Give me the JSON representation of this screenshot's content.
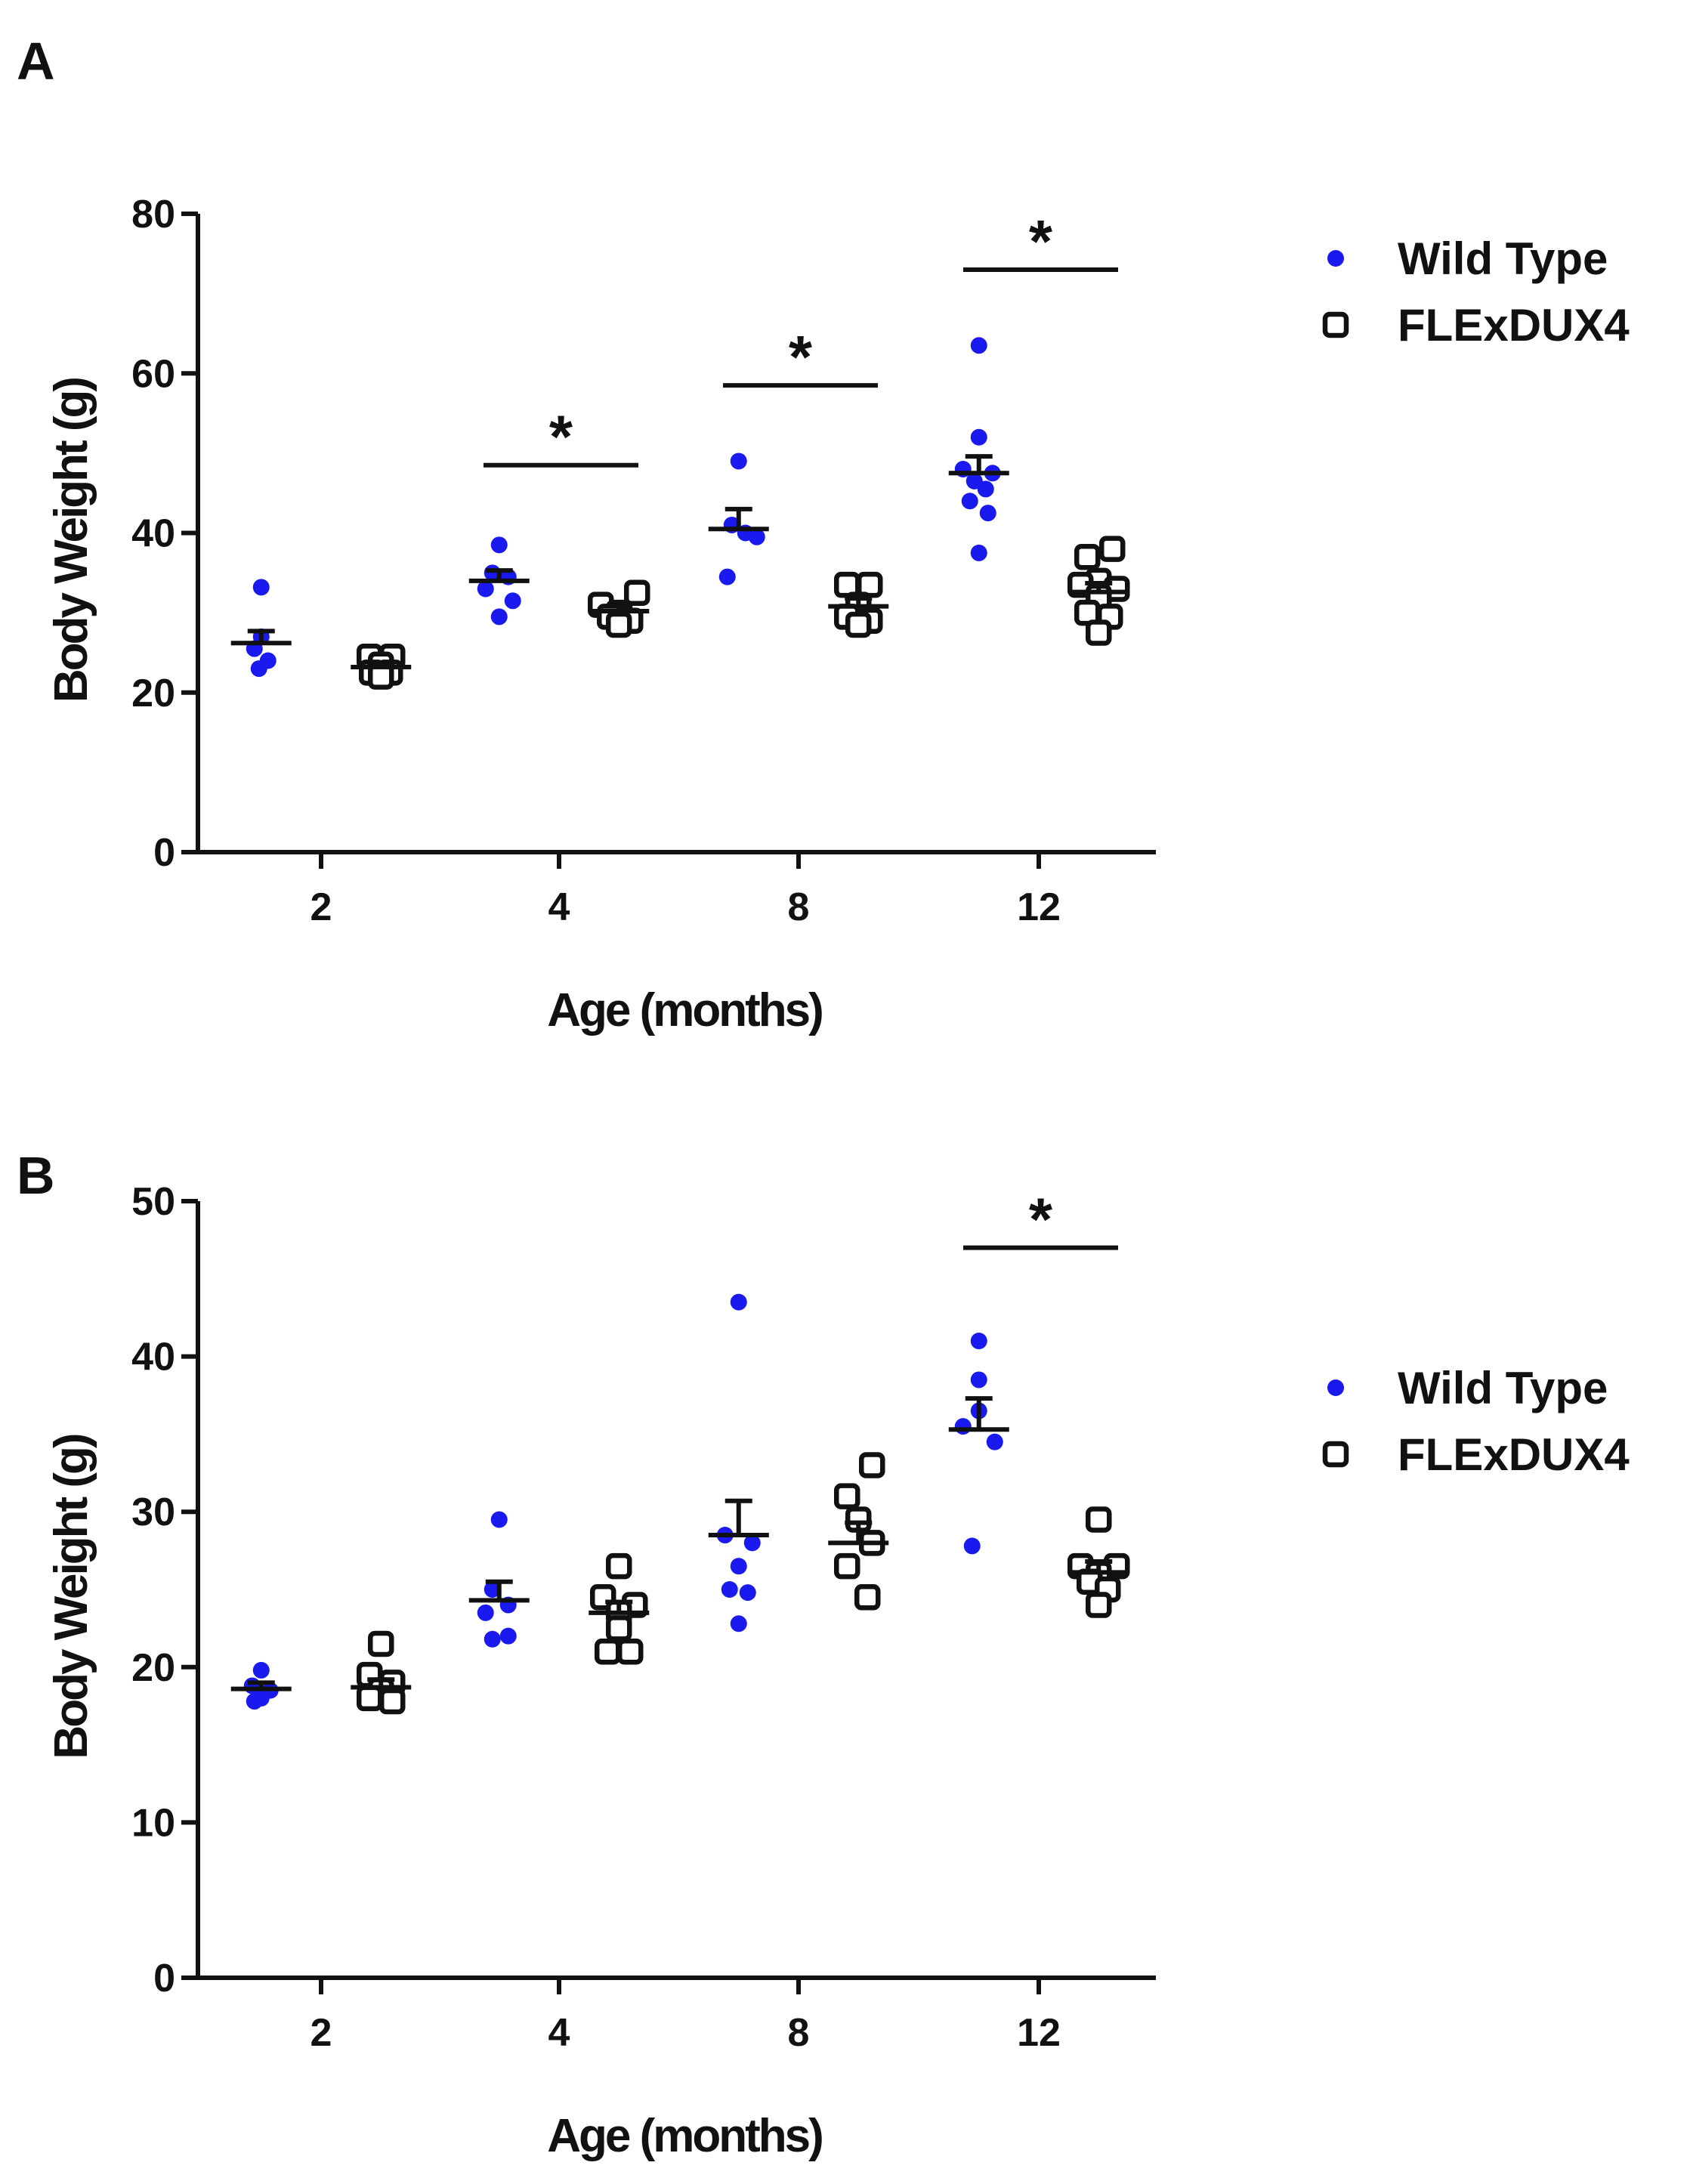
{
  "chart_data": [
    {
      "type": "scatter",
      "panel_label": "A",
      "xlabel": "Age (months)",
      "ylabel": "Body Weight (g)",
      "ylim": [
        0,
        80
      ],
      "yticks": [
        "0",
        "20",
        "40",
        "60",
        "80"
      ],
      "categories": [
        "2",
        "4",
        "8",
        "12"
      ],
      "legend": {
        "placement": "top-right",
        "entries": [
          "Wild Type",
          "FLExDUX4"
        ]
      },
      "series": [
        {
          "name": "Wild Type",
          "marker": "filled-circle",
          "color": "#1a1aee",
          "points": [
            [
              [
                33.2,
                0
              ],
              [
                27.0,
                0
              ],
              [
                25.5,
                -0.3
              ],
              [
                24.0,
                0.3
              ],
              [
                23.0,
                -0.1
              ]
            ],
            [
              [
                38.5,
                0
              ],
              [
                35.0,
                -0.3
              ],
              [
                34.5,
                0.4
              ],
              [
                33.0,
                -0.6
              ],
              [
                31.5,
                0.6
              ],
              [
                29.5,
                0
              ]
            ],
            [
              [
                49.0,
                0
              ],
              [
                41.0,
                -0.3
              ],
              [
                40.0,
                0.3
              ],
              [
                39.5,
                0.8
              ],
              [
                34.5,
                -0.5
              ]
            ],
            [
              [
                63.5,
                0
              ],
              [
                52.0,
                0
              ],
              [
                48.0,
                -0.7
              ],
              [
                47.5,
                0.6
              ],
              [
                46.5,
                -0.2
              ],
              [
                45.5,
                0.3
              ],
              [
                44.0,
                -0.4
              ],
              [
                42.5,
                0.4
              ],
              [
                37.5,
                0
              ]
            ]
          ],
          "mean": [
            26.2,
            34.0,
            40.5,
            47.5
          ],
          "sem": [
            1.5,
            1.3,
            2.5,
            2.1
          ]
        },
        {
          "name": "FLExDUX4",
          "marker": "open-square",
          "color": "#111111",
          "points": [
            [
              [
                24.5,
                -0.5
              ],
              [
                24.5,
                0.5
              ],
              [
                23.5,
                0
              ],
              [
                22.5,
                -0.4
              ],
              [
                22.5,
                0.4
              ],
              [
                22.0,
                0
              ]
            ],
            [
              [
                32.5,
                0.8
              ],
              [
                31.0,
                -0.8
              ],
              [
                30.0,
                0
              ],
              [
                29.5,
                -0.4
              ],
              [
                29.0,
                0.5
              ],
              [
                28.5,
                0
              ]
            ],
            [
              [
                33.5,
                -0.5
              ],
              [
                33.5,
                0.5
              ],
              [
                31.0,
                0
              ],
              [
                29.5,
                -0.5
              ],
              [
                29.0,
                0.5
              ],
              [
                28.5,
                0
              ]
            ],
            [
              [
                38.0,
                0.6
              ],
              [
                37.0,
                -0.5
              ],
              [
                34.0,
                0
              ],
              [
                33.5,
                -0.8
              ],
              [
                33.0,
                0.8
              ],
              [
                32.0,
                0
              ],
              [
                30.0,
                -0.5
              ],
              [
                29.5,
                0.5
              ],
              [
                27.5,
                0
              ]
            ]
          ],
          "mean": [
            23.2,
            30.2,
            30.8,
            32.6
          ],
          "sem": [
            0.5,
            0.6,
            1.0,
            1.1
          ]
        }
      ],
      "significance": [
        {
          "category": "4",
          "label": "*",
          "y": 48.5
        },
        {
          "category": "8",
          "label": "*",
          "y": 58.5
        },
        {
          "category": "12",
          "label": "*",
          "y": 73.0
        }
      ]
    },
    {
      "type": "scatter",
      "panel_label": "B",
      "xlabel": "Age (months)",
      "ylabel": "Body Weight (g)",
      "ylim": [
        0,
        50
      ],
      "yticks": [
        "0",
        "10",
        "20",
        "30",
        "40",
        "50"
      ],
      "categories": [
        "2",
        "4",
        "8",
        "12"
      ],
      "legend": {
        "placement": "top-right",
        "entries": [
          "Wild Type",
          "FLExDUX4"
        ]
      },
      "series": [
        {
          "name": "Wild Type",
          "marker": "filled-circle",
          "color": "#1a1aee",
          "points": [
            [
              [
                19.8,
                0
              ],
              [
                18.8,
                -0.4
              ],
              [
                18.5,
                0.4
              ],
              [
                18.0,
                0
              ],
              [
                17.8,
                -0.3
              ]
            ],
            [
              [
                29.5,
                0
              ],
              [
                25.0,
                -0.3
              ],
              [
                24.0,
                0.4
              ],
              [
                23.5,
                -0.6
              ],
              [
                22.0,
                0.4
              ],
              [
                21.8,
                -0.3
              ]
            ],
            [
              [
                43.5,
                0
              ],
              [
                28.5,
                -0.6
              ],
              [
                28.0,
                0.6
              ],
              [
                26.5,
                0
              ],
              [
                25.0,
                -0.4
              ],
              [
                24.8,
                0.4
              ],
              [
                22.8,
                0
              ]
            ],
            [
              [
                41.0,
                0
              ],
              [
                38.5,
                0
              ],
              [
                36.5,
                0
              ],
              [
                35.5,
                -0.7
              ],
              [
                34.5,
                0.7
              ],
              [
                27.8,
                -0.3
              ]
            ]
          ],
          "mean": [
            18.6,
            24.3,
            28.5,
            35.3
          ],
          "sem": [
            0.4,
            1.2,
            2.2,
            2.0
          ]
        },
        {
          "name": "FLExDUX4",
          "marker": "open-square",
          "color": "#111111",
          "points": [
            [
              [
                21.5,
                0
              ],
              [
                19.5,
                -0.5
              ],
              [
                19.0,
                0.5
              ],
              [
                18.5,
                0
              ],
              [
                18.0,
                -0.5
              ],
              [
                17.8,
                0.5
              ]
            ],
            [
              [
                26.5,
                0
              ],
              [
                24.5,
                -0.7
              ],
              [
                24.0,
                0.7
              ],
              [
                23.5,
                0
              ],
              [
                22.5,
                0
              ],
              [
                21.0,
                -0.5
              ],
              [
                21.0,
                0.5
              ]
            ],
            [
              [
                33.0,
                0.6
              ],
              [
                31.0,
                -0.5
              ],
              [
                29.5,
                0
              ],
              [
                28.0,
                0.6
              ],
              [
                26.5,
                -0.5
              ],
              [
                24.5,
                0.4
              ]
            ],
            [
              [
                29.5,
                0
              ],
              [
                26.5,
                -0.8
              ],
              [
                26.5,
                0.8
              ],
              [
                26.0,
                0
              ],
              [
                25.5,
                -0.4
              ],
              [
                25.0,
                0.4
              ],
              [
                24.0,
                0
              ]
            ]
          ],
          "mean": [
            18.7,
            23.5,
            28.0,
            26.1
          ],
          "sem": [
            0.5,
            0.7,
            1.3,
            0.7
          ]
        }
      ],
      "significance": [
        {
          "category": "12",
          "label": "*",
          "y": 47.0
        }
      ]
    }
  ]
}
